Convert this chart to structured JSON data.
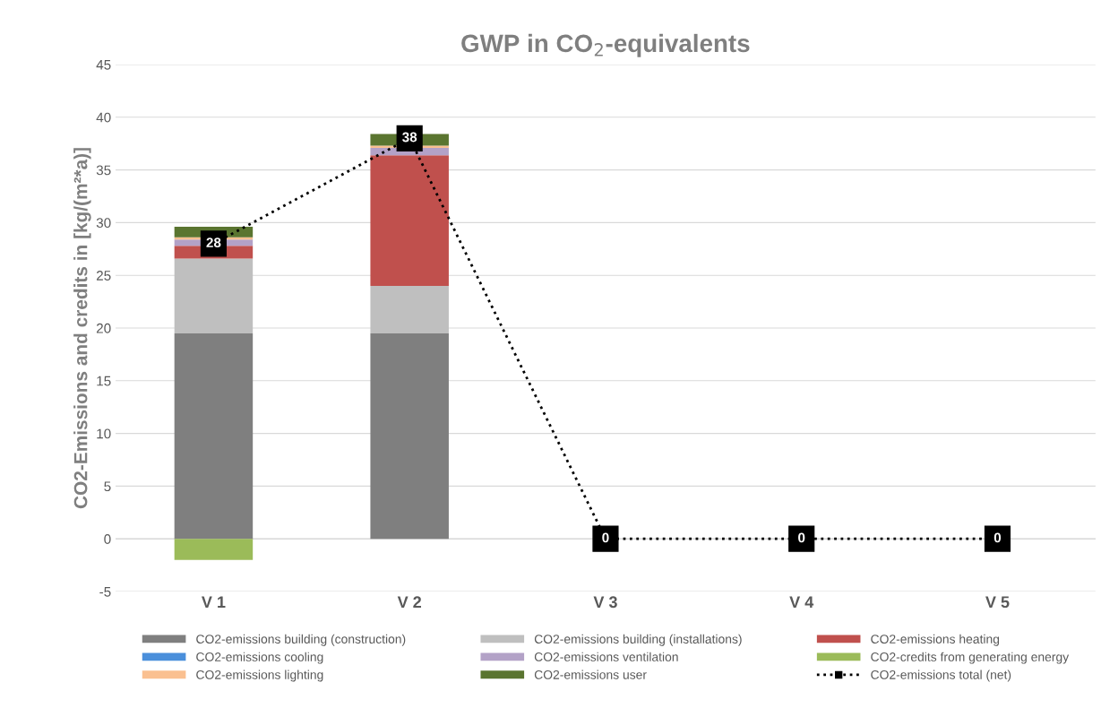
{
  "chart_data": {
    "type": "bar",
    "stacked": true,
    "title": "GWP in CO$_{2}$-equivalents",
    "ylabel": "CO2-Emissions and credits in [kg/(m²*a)]",
    "categories": [
      "V 1",
      "V 2",
      "V 3",
      "V 4",
      "V 5"
    ],
    "series": [
      {
        "name": "CO2-emissions building (construction)",
        "color": "#7f7f7f",
        "values": [
          19.5,
          19.5,
          0,
          0,
          0
        ]
      },
      {
        "name": "CO2-emissions building (installations)",
        "color": "#bfbfbf",
        "values": [
          7.1,
          4.5,
          0,
          0,
          0
        ]
      },
      {
        "name": "CO2-emissions heating",
        "color": "#c0504d",
        "values": [
          1.2,
          12.4,
          0,
          0,
          0
        ]
      },
      {
        "name": "CO2-emissions cooling",
        "color": "#4a8fdb",
        "values": [
          0,
          0,
          0,
          0,
          0
        ]
      },
      {
        "name": "CO2-emissions ventilation",
        "color": "#b3a2c7",
        "values": [
          0.6,
          0.7,
          0,
          0,
          0
        ]
      },
      {
        "name": "CO2-credits from generating energy",
        "color": "#9bbb59",
        "values": [
          -2.0,
          0,
          0,
          0,
          0
        ]
      },
      {
        "name": "CO2-emissions lighting",
        "color": "#fac090",
        "values": [
          0.2,
          0.2,
          0,
          0,
          0
        ]
      },
      {
        "name": "CO2-emissions user",
        "color": "#5a7530",
        "values": [
          1.0,
          1.1,
          0,
          0,
          0
        ]
      },
      {
        "name": "CO2-emissions total (net)",
        "type": "line",
        "color": "#000000",
        "line_style": "dotted",
        "marker": "square",
        "values": [
          28,
          38,
          0,
          0,
          0
        ],
        "value_labels": [
          "28",
          "38",
          "0",
          "0",
          "0"
        ]
      }
    ],
    "ylim": [
      -5,
      45
    ],
    "yticks": [
      -5,
      0,
      5,
      10,
      15,
      20,
      25,
      30,
      35,
      40,
      45
    ],
    "grid": "y",
    "legend": "bottom"
  }
}
